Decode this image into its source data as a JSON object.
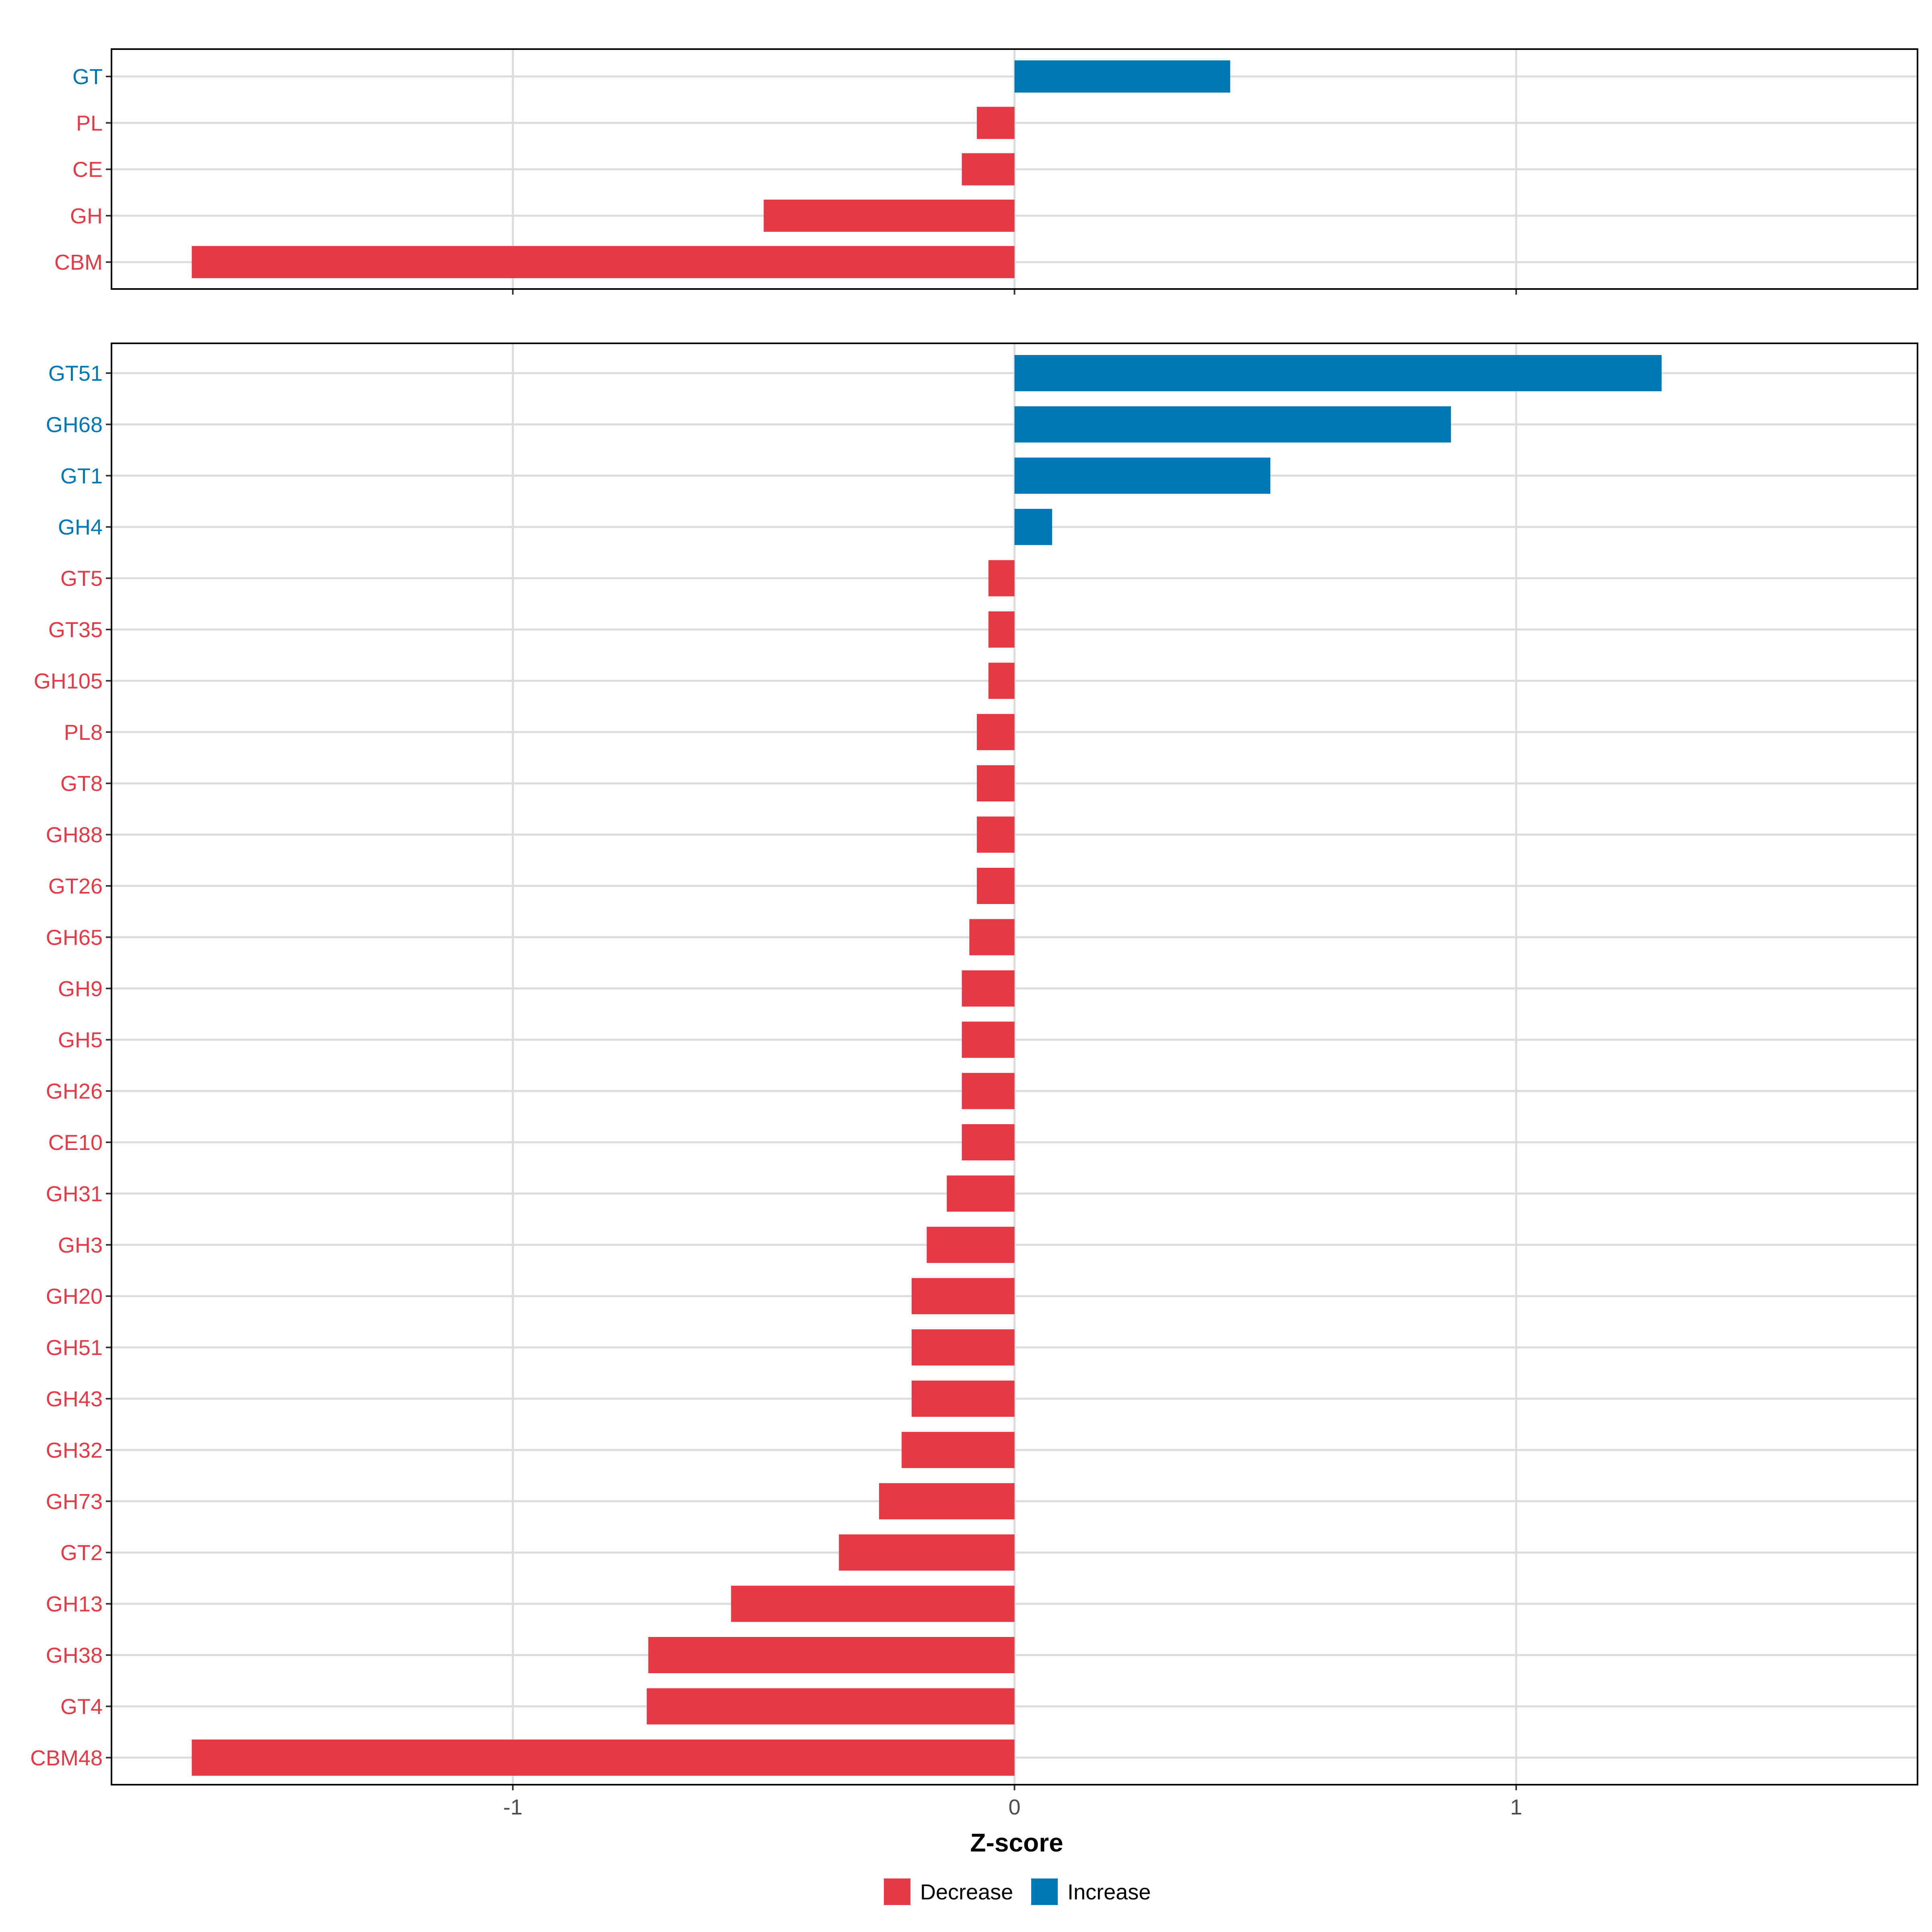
{
  "chart_data": [
    {
      "type": "bar",
      "orientation": "horizontal",
      "panel": "top",
      "categories": [
        "GT",
        "PL",
        "CE",
        "GH",
        "CBM"
      ],
      "values": [
        0.43,
        -0.075,
        -0.105,
        -0.5,
        -1.64
      ],
      "direction": [
        "Increase",
        "Decrease",
        "Decrease",
        "Decrease",
        "Decrease"
      ],
      "xlim": [
        -1.8,
        1.8
      ],
      "xticks": [
        -1,
        0,
        1
      ]
    },
    {
      "type": "bar",
      "orientation": "horizontal",
      "panel": "bottom",
      "categories": [
        "GT51",
        "GH68",
        "GT1",
        "GH4",
        "GT5",
        "GT35",
        "GH105",
        "PL8",
        "GT8",
        "GH88",
        "GT26",
        "GH65",
        "GH9",
        "GH5",
        "GH26",
        "CE10",
        "GH31",
        "GH3",
        "GH20",
        "GH51",
        "GH43",
        "GH32",
        "GH73",
        "GT2",
        "GH13",
        "GH38",
        "GT4",
        "CBM48"
      ],
      "values": [
        1.29,
        0.87,
        0.51,
        0.075,
        -0.052,
        -0.052,
        -0.052,
        -0.075,
        -0.075,
        -0.075,
        -0.075,
        -0.09,
        -0.105,
        -0.105,
        -0.105,
        -0.105,
        -0.135,
        -0.175,
        -0.205,
        -0.205,
        -0.205,
        -0.225,
        -0.27,
        -0.35,
        -0.565,
        -0.73,
        -0.733,
        -1.64
      ],
      "direction": [
        "Increase",
        "Increase",
        "Increase",
        "Increase",
        "Decrease",
        "Decrease",
        "Decrease",
        "Decrease",
        "Decrease",
        "Decrease",
        "Decrease",
        "Decrease",
        "Decrease",
        "Decrease",
        "Decrease",
        "Decrease",
        "Decrease",
        "Decrease",
        "Decrease",
        "Decrease",
        "Decrease",
        "Decrease",
        "Decrease",
        "Decrease",
        "Decrease",
        "Decrease",
        "Decrease",
        "Decrease"
      ],
      "xlim": [
        -1.8,
        1.8
      ],
      "xticks": [
        -1,
        0,
        1
      ],
      "xlabel": "Z-score"
    }
  ],
  "xtick_labels": [
    "-1",
    "0",
    "1"
  ],
  "xlabel": "Z-score",
  "legend": {
    "placement": "bottom",
    "items": [
      {
        "label": "Decrease",
        "color": "#E63946"
      },
      {
        "label": "Increase",
        "color": "#0077B6"
      }
    ]
  },
  "colors": {
    "Decrease": "#E63946",
    "Increase": "#0077B6"
  }
}
